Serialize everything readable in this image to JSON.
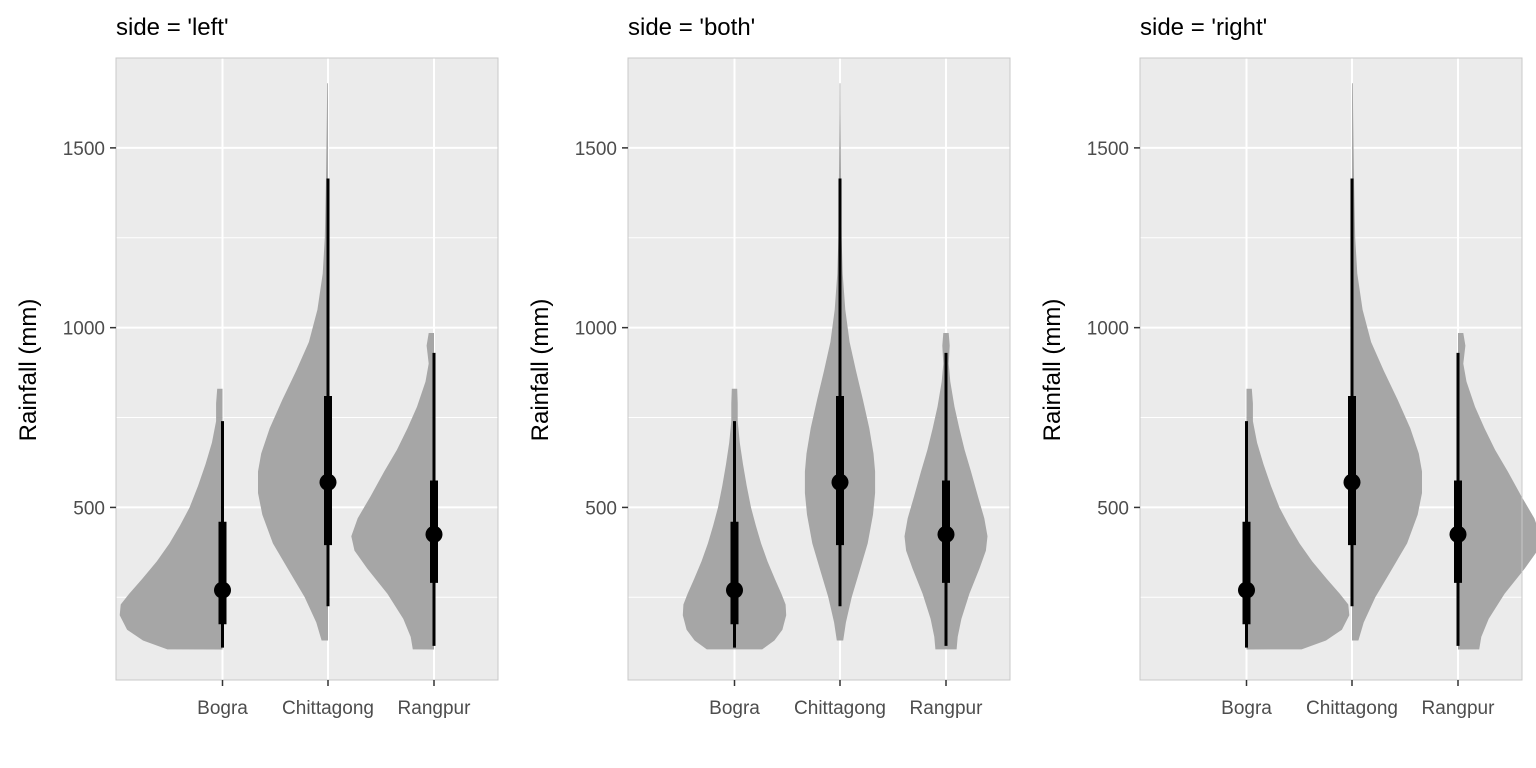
{
  "chart_data": [
    {
      "type": "violin",
      "title": "side = 'left'",
      "side": "left",
      "xlabel": "",
      "ylabel": "Rainfall (mm)",
      "categories": [
        "Bogra",
        "Chittagong",
        "Rangpur"
      ],
      "yticks": [
        500,
        1000,
        1500
      ],
      "ylim": [
        20,
        1750
      ],
      "grid": true,
      "legend": "none"
    },
    {
      "type": "violin",
      "title": "side = 'both'",
      "side": "both",
      "xlabel": "",
      "ylabel": "Rainfall (mm)",
      "categories": [
        "Bogra",
        "Chittagong",
        "Rangpur"
      ],
      "yticks": [
        500,
        1000,
        1500
      ],
      "ylim": [
        20,
        1750
      ],
      "grid": true,
      "legend": "none"
    },
    {
      "type": "violin",
      "title": "side = 'right'",
      "side": "right",
      "xlabel": "",
      "ylabel": "Rainfall (mm)",
      "categories": [
        "Bogra",
        "Chittagong",
        "Rangpur"
      ],
      "yticks": [
        500,
        1000,
        1500
      ],
      "ylim": [
        20,
        1750
      ],
      "grid": true,
      "legend": "none"
    }
  ],
  "distributions": [
    {
      "category": "Bogra",
      "min": 105,
      "max": 830,
      "median": 270,
      "interval_inner": [
        175,
        460
      ],
      "interval_outer": [
        110,
        740
      ],
      "density": [
        [
          105,
          0.52
        ],
        [
          130,
          0.75
        ],
        [
          160,
          0.9
        ],
        [
          200,
          0.97
        ],
        [
          230,
          0.96
        ],
        [
          260,
          0.88
        ],
        [
          300,
          0.76
        ],
        [
          350,
          0.62
        ],
        [
          400,
          0.5
        ],
        [
          450,
          0.4
        ],
        [
          500,
          0.31
        ],
        [
          560,
          0.23
        ],
        [
          620,
          0.16
        ],
        [
          680,
          0.1
        ],
        [
          740,
          0.06
        ],
        [
          790,
          0.06
        ],
        [
          830,
          0.05
        ]
      ]
    },
    {
      "category": "Chittagong",
      "min": 130,
      "max": 1680,
      "median": 570,
      "interval_inner": [
        395,
        810
      ],
      "interval_outer": [
        225,
        1415
      ],
      "density": [
        [
          130,
          0.06
        ],
        [
          180,
          0.11
        ],
        [
          250,
          0.22
        ],
        [
          320,
          0.36
        ],
        [
          400,
          0.52
        ],
        [
          480,
          0.62
        ],
        [
          540,
          0.66
        ],
        [
          600,
          0.66
        ],
        [
          650,
          0.63
        ],
        [
          720,
          0.55
        ],
        [
          800,
          0.43
        ],
        [
          880,
          0.3
        ],
        [
          960,
          0.18
        ],
        [
          1050,
          0.1
        ],
        [
          1150,
          0.05
        ],
        [
          1250,
          0.03
        ],
        [
          1400,
          0.02
        ],
        [
          1500,
          0.015
        ],
        [
          1600,
          0.01
        ],
        [
          1680,
          0.008
        ]
      ]
    },
    {
      "category": "Rangpur",
      "min": 105,
      "max": 985,
      "median": 425,
      "interval_inner": [
        290,
        575
      ],
      "interval_outer": [
        115,
        930
      ],
      "density": [
        [
          105,
          0.2
        ],
        [
          140,
          0.22
        ],
        [
          190,
          0.29
        ],
        [
          260,
          0.44
        ],
        [
          330,
          0.63
        ],
        [
          380,
          0.75
        ],
        [
          420,
          0.78
        ],
        [
          470,
          0.72
        ],
        [
          530,
          0.6
        ],
        [
          600,
          0.47
        ],
        [
          660,
          0.35
        ],
        [
          720,
          0.25
        ],
        [
          780,
          0.16
        ],
        [
          850,
          0.08
        ],
        [
          900,
          0.05
        ],
        [
          950,
          0.07
        ],
        [
          985,
          0.05
        ]
      ]
    }
  ],
  "style": {
    "panel_background": "#ebebeb",
    "grid_color": "#ffffff",
    "violin_fill": "#a6a6a6",
    "interval_color": "#000000"
  }
}
